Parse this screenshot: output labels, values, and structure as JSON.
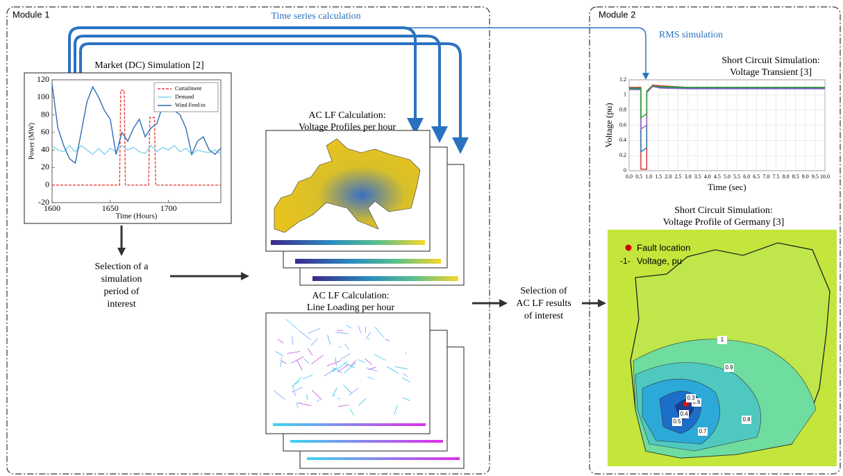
{
  "module1": {
    "label": "Module 1"
  },
  "module2": {
    "label": "Module 2"
  },
  "arrows": {
    "time_series": "Time series calculation",
    "rms": "RMS simulation"
  },
  "selection_period": {
    "lines": [
      "Selection of a",
      "simulation",
      "period of",
      "interest"
    ]
  },
  "selection_results": {
    "lines": [
      "Selection of",
      "AC LF results",
      "of interest"
    ]
  },
  "voltage_profiles": {
    "title": [
      "AC LF Calculation:",
      "Voltage Profiles per hour"
    ]
  },
  "line_loading": {
    "title": [
      "AC LF Calculation:",
      "Line Loading per hour"
    ]
  },
  "germany_map": {
    "title": [
      "Short Circuit Simulation:",
      "Voltage Profile of Germany [3]"
    ],
    "legend": [
      "Fault location",
      "Voltage, pu"
    ],
    "legend_symbol": "-1-",
    "contour_labels": [
      "1",
      "0.9",
      "0.8",
      "0.7",
      "0.6",
      "0.5",
      "0.4",
      "0.3"
    ]
  },
  "chart_data": [
    {
      "type": "line",
      "title": "Market (DC) Simulation [2]",
      "x_label": "Time (Hours)",
      "y_label": "Power (MW)",
      "xlim": [
        1600,
        1745
      ],
      "ylim": [
        -20,
        120
      ],
      "xticks": [
        1600,
        1650,
        1700
      ],
      "yticks": [
        -20,
        0,
        20,
        40,
        60,
        80,
        100,
        120
      ],
      "legend_position": "upper right",
      "series": [
        {
          "name": "Curtailment",
          "color": "#e8413a",
          "dashed": true,
          "x": [
            1600,
            1658,
            1659,
            1662,
            1663,
            1683,
            1684,
            1688,
            1689,
            1745
          ],
          "values": [
            0,
            0,
            108,
            108,
            0,
            0,
            77,
            77,
            0,
            0
          ]
        },
        {
          "name": "Demand",
          "color": "#7fd3ee",
          "dashed": false,
          "x": [
            1600,
            1605,
            1610,
            1615,
            1620,
            1625,
            1630,
            1635,
            1640,
            1645,
            1650,
            1655,
            1660,
            1665,
            1670,
            1675,
            1680,
            1685,
            1690,
            1695,
            1700,
            1705,
            1710,
            1715,
            1720,
            1725,
            1730,
            1735,
            1740,
            1745
          ],
          "values": [
            45,
            40,
            38,
            45,
            38,
            45,
            40,
            35,
            42,
            35,
            42,
            38,
            45,
            40,
            43,
            38,
            36,
            45,
            38,
            43,
            40,
            45,
            38,
            42,
            35,
            40,
            38,
            37,
            40,
            35
          ]
        },
        {
          "name": "Wind Feed-in",
          "color": "#2c6db5",
          "dashed": false,
          "x": [
            1600,
            1605,
            1610,
            1615,
            1620,
            1625,
            1630,
            1635,
            1640,
            1645,
            1650,
            1655,
            1660,
            1665,
            1670,
            1675,
            1680,
            1685,
            1690,
            1695,
            1700,
            1705,
            1710,
            1715,
            1720,
            1725,
            1730,
            1735,
            1740,
            1745
          ],
          "values": [
            115,
            65,
            45,
            30,
            25,
            60,
            95,
            112,
            100,
            85,
            75,
            35,
            60,
            50,
            65,
            75,
            55,
            65,
            70,
            90,
            95,
            85,
            80,
            65,
            35,
            50,
            55,
            40,
            35,
            42
          ]
        }
      ]
    },
    {
      "type": "line",
      "title": [
        "Short Circuit Simulation:",
        "Voltage Transient [3]"
      ],
      "x_label": "Time (sec)",
      "y_label": "Voltage (pu)",
      "xlim": [
        0,
        10
      ],
      "ylim": [
        0,
        1.2
      ],
      "grid": true,
      "yticks": [
        0,
        0.2,
        0.4,
        0.6,
        0.8,
        1,
        1.2
      ],
      "xticks": [
        {
          "value": 0,
          "label": "0.0"
        },
        {
          "value": 0.5,
          "label": "0.5"
        },
        {
          "value": 1,
          "label": "1.0"
        },
        {
          "value": 1.5,
          "label": "1.5"
        },
        {
          "value": 2,
          "label": "2.0"
        },
        {
          "value": 2.5,
          "label": "2.5"
        },
        {
          "value": 3,
          "label": "3.0"
        },
        {
          "value": 3.5,
          "label": "3.5"
        },
        {
          "value": 4,
          "label": "4.0"
        },
        {
          "value": 4.5,
          "label": "4.5"
        },
        {
          "value": 5,
          "label": "5.0"
        },
        {
          "value": 5.5,
          "label": "5.5"
        },
        {
          "value": 6,
          "label": "6.0"
        },
        {
          "value": 6.5,
          "label": "6.5"
        },
        {
          "value": 7,
          "label": "7.0"
        },
        {
          "value": 7.5,
          "label": "7.5"
        },
        {
          "value": 8,
          "label": "8.0"
        },
        {
          "value": 8.5,
          "label": "8.5"
        },
        {
          "value": 9,
          "label": "9.0"
        },
        {
          "value": 9.5,
          "label": "9.5"
        },
        {
          "value": 10,
          "label": "10.0"
        }
      ],
      "series": [
        {
          "color": "#d62728",
          "x": [
            0,
            0.6,
            0.6,
            0.9,
            0.9,
            1.2,
            1.6,
            3,
            10
          ],
          "values": [
            1.1,
            1.1,
            0.02,
            0.02,
            1.05,
            1.13,
            1.12,
            1.1,
            1.1
          ]
        },
        {
          "color": "#1f77b4",
          "x": [
            0,
            0.6,
            0.6,
            0.9,
            0.9,
            1.2,
            1.6,
            3,
            10
          ],
          "values": [
            1.08,
            1.08,
            0.25,
            0.3,
            1.04,
            1.12,
            1.1,
            1.09,
            1.09
          ]
        },
        {
          "color": "#9467bd",
          "x": [
            0,
            0.6,
            0.6,
            0.9,
            0.9,
            1.2,
            1.6,
            3,
            10
          ],
          "values": [
            1.07,
            1.07,
            0.55,
            0.6,
            1.03,
            1.11,
            1.09,
            1.08,
            1.08
          ]
        },
        {
          "color": "#2ca02c",
          "x": [
            0,
            0.6,
            0.6,
            0.9,
            0.9,
            1.2,
            1.6,
            3,
            10
          ],
          "values": [
            1.09,
            1.09,
            0.7,
            0.75,
            1.05,
            1.12,
            1.11,
            1.1,
            1.1
          ]
        }
      ]
    }
  ]
}
